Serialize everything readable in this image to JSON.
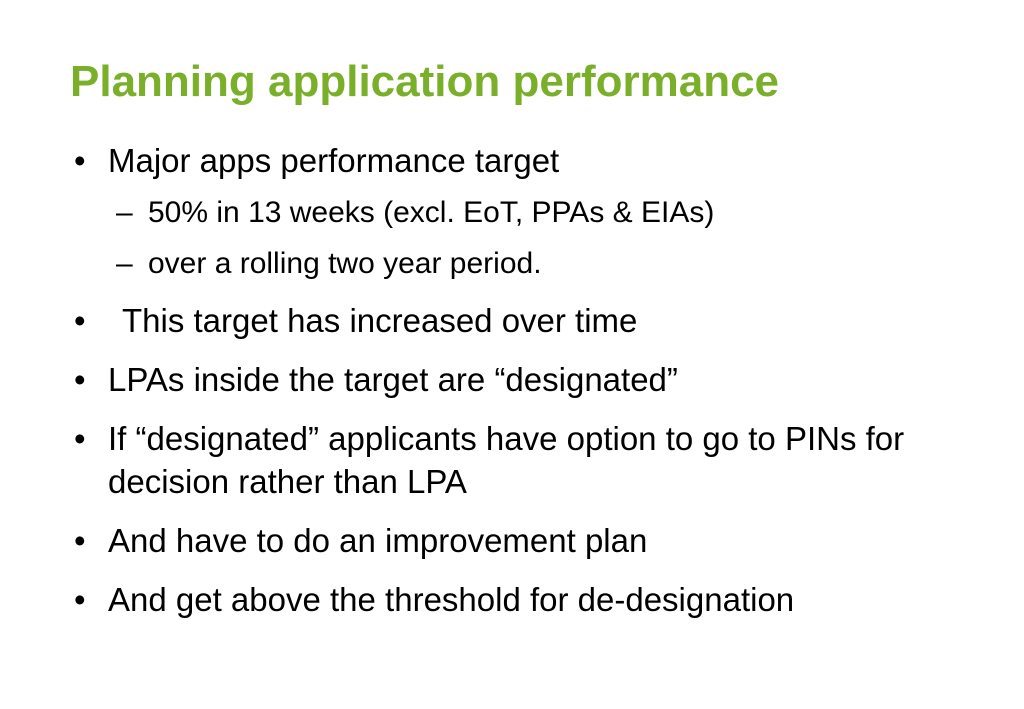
{
  "slide": {
    "title": "Planning application performance",
    "title_color": "#7aaf2a",
    "title_fontsize": 44,
    "body_fontsize_l1": 33,
    "body_fontsize_l2": 30,
    "background_color": "#ffffff",
    "text_color": "#000000",
    "bullets": [
      {
        "text": "Major apps performance target",
        "sub": [
          "50% in 13 weeks (excl. EoT, PPAs & EIAs)",
          "over a rolling two year period."
        ]
      },
      {
        "text": " This target has increased over time"
      },
      {
        "text": "LPAs inside the target are “designated”"
      },
      {
        "text": "If “designated” applicants have option to go to PINs for decision rather than LPA"
      },
      {
        "text": "And have to do an improvement plan"
      },
      {
        "text": "And get above the threshold for de-designation"
      }
    ]
  }
}
